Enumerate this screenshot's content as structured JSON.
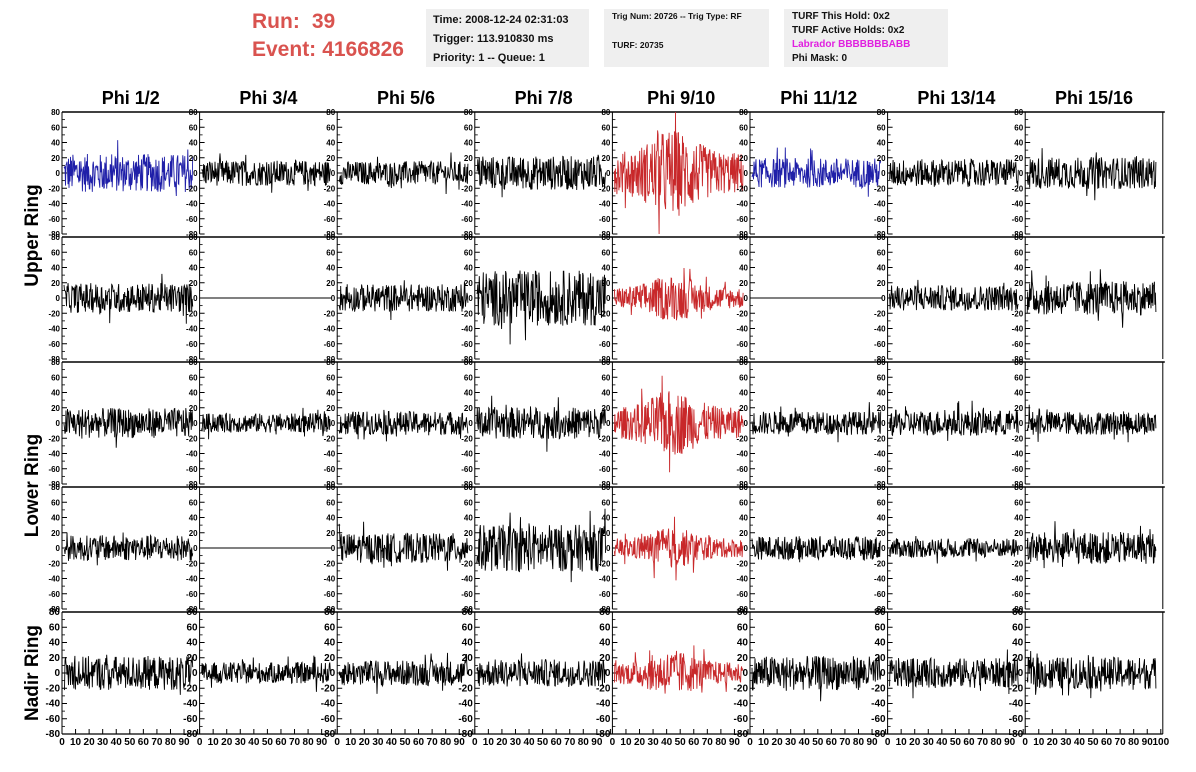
{
  "header": {
    "run_label": "Run:",
    "run_value": "39",
    "event_label": "Event:",
    "event_value": "4166826",
    "time": "Time: 2008-12-24 02:31:03",
    "trigger": "Trigger: 113.910830 ms",
    "priority": "Priority: 1 -- Queue: 1",
    "trig_num": "Trig Num: 20726 -- Trig Type: RF",
    "turf": "TURF: 20735",
    "turf_hold": "TURF This Hold: 0x2",
    "turf_active": "TURF Active Holds: 0x2",
    "labrador": "Labrador BBBBBBBABB",
    "phi_mask": "Phi Mask: 0"
  },
  "colors": {
    "run_text": "#d9534f",
    "labrador_text": "#e020e0",
    "trace_black": "#000000",
    "trace_blue": "#1f1fa8",
    "trace_red": "#c8282a",
    "info_bg": "#efefef"
  },
  "chart_data": {
    "type": "line",
    "columns": [
      "Phi 1/2",
      "Phi 3/4",
      "Phi 5/6",
      "Phi 7/8",
      "Phi 9/10",
      "Phi 11/12",
      "Phi 13/14",
      "Phi 15/16"
    ],
    "rows": [
      "Upper Ring",
      "Lower Ring",
      "Nadir Ring"
    ],
    "row_groups": [
      {
        "label": "Upper Ring",
        "panel_rows": [
          0,
          1
        ]
      },
      {
        "label": "Lower Ring",
        "panel_rows": [
          2,
          3
        ]
      },
      {
        "label": "Nadir Ring",
        "panel_rows": [
          4
        ]
      }
    ],
    "ylim": [
      -80,
      80
    ],
    "yticks": [
      80,
      60,
      40,
      20,
      0,
      -20,
      -40,
      -60,
      -80
    ],
    "xlim": [
      0,
      100
    ],
    "xtick_labels": [
      "0",
      "10",
      "20",
      "30",
      "40",
      "50",
      "60",
      "70",
      "80",
      "90",
      "100"
    ],
    "x_axis_strip": "0 102030405060708090100",
    "panels": [
      [
        "blue",
        "black",
        "black",
        "black",
        "red",
        "blue",
        "black",
        "black"
      ],
      [
        "black",
        "flat",
        "black",
        "black",
        "red",
        "flat",
        "black",
        "black"
      ],
      [
        "black",
        "black",
        "black",
        "black",
        "red",
        "black",
        "black",
        "black"
      ],
      [
        "black",
        "flat",
        "black",
        "black",
        "red",
        "black",
        "black",
        "black"
      ],
      [
        "black",
        "black",
        "black",
        "black",
        "red",
        "black",
        "black",
        "black"
      ]
    ],
    "amplitude": [
      [
        18,
        12,
        11,
        16,
        35,
        14,
        13,
        15
      ],
      [
        14,
        0,
        13,
        26,
        18,
        0,
        12,
        16
      ],
      [
        14,
        9,
        11,
        15,
        26,
        11,
        12,
        11
      ],
      [
        12,
        0,
        14,
        22,
        16,
        11,
        9,
        15
      ],
      [
        16,
        10,
        12,
        13,
        18,
        16,
        14,
        15
      ]
    ]
  }
}
